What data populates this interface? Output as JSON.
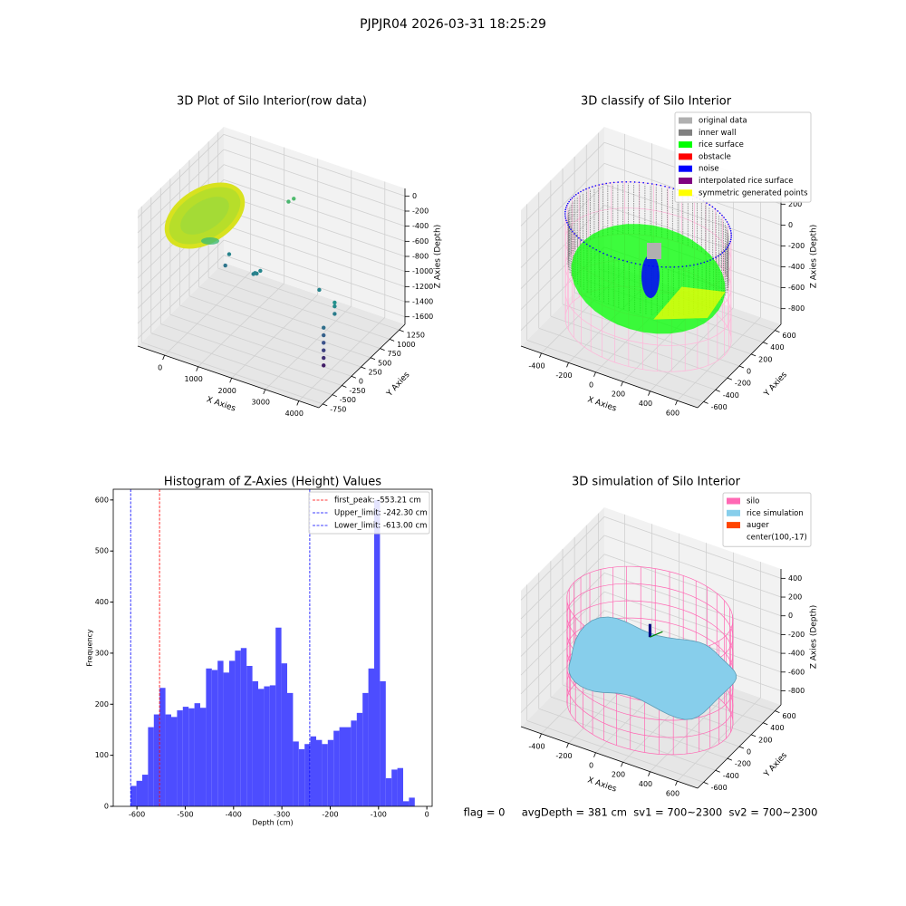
{
  "suptitle": "PJPJR04 2026-03-31 18:25:29",
  "chart_data": [
    {
      "type": "scatter3d",
      "title": "3D Plot of Silo Interior(row data)",
      "xlabel": "X Axies",
      "ylabel": "Y Axies",
      "zlabel": "Z Axies (Depth)",
      "xlim": [
        -800,
        4600
      ],
      "ylim": [
        -850,
        1400
      ],
      "zlim": [
        -1700,
        100
      ],
      "xticks": [
        0,
        1000,
        2000,
        3000,
        4000
      ],
      "yticks": [
        -750,
        -500,
        -250,
        0,
        250,
        500,
        750,
        1000,
        1250
      ],
      "zticks": [
        0,
        -200,
        -400,
        -600,
        -800,
        -1000,
        -1200,
        -1400,
        -1600
      ],
      "colormap": "viridis",
      "x": [
        4000,
        4000,
        4000,
        4000,
        4000,
        4000,
        4100,
        4100,
        4100,
        3300,
        1500,
        1550,
        1600,
        1450,
        500,
        500,
        1300,
        1400
      ],
      "y": [
        -200,
        -200,
        -200,
        -200,
        -200,
        -200,
        0,
        0,
        0,
        300,
        200,
        200,
        250,
        200,
        400,
        300,
        1250,
        1300
      ],
      "z": [
        -1550,
        -1450,
        -1350,
        -1250,
        -1150,
        -1050,
        -950,
        -850,
        -800,
        -900,
        -900,
        -900,
        -880,
        -920,
        -900,
        -1000,
        -500,
        -470
      ]
    },
    {
      "type": "surface3d",
      "title": "3D classify of Silo Interior",
      "xlabel": "X Axies",
      "ylabel": "Y Axies",
      "zlabel": "Z Axies (Depth)",
      "xlim": [
        -550,
        750
      ],
      "ylim": [
        -700,
        700
      ],
      "zlim": [
        -950,
        350
      ],
      "xticks": [
        -400,
        -200,
        0,
        200,
        400,
        600
      ],
      "yticks": [
        -600,
        -400,
        -200,
        0,
        200,
        400,
        600
      ],
      "zticks": [
        -800,
        -600,
        -400,
        -200,
        0,
        200
      ],
      "series": [
        {
          "name": "original data",
          "color": "#b0b0b0"
        },
        {
          "name": "inner wall",
          "color": "#808080"
        },
        {
          "name": "rice surface",
          "color": "#00ff00"
        },
        {
          "name": "obstacle",
          "color": "#ff0000"
        },
        {
          "name": "noise",
          "color": "#0000ff"
        },
        {
          "name": "interpolated rice surface",
          "color": "#800080"
        },
        {
          "name": "symmetric generated points",
          "color": "#ffff00"
        }
      ]
    },
    {
      "type": "histogram",
      "title": "Histogram of Z-Axies (Height) Values",
      "xlabel": "Depth (cm)",
      "ylabel": "Frequency",
      "color": "#4d4dff",
      "xlim": [
        -649,
        11
      ],
      "ylim": [
        0,
        621
      ],
      "xticks": [
        -600,
        -500,
        -400,
        -300,
        -200,
        -100,
        0
      ],
      "yticks": [
        0,
        100,
        200,
        300,
        400,
        500,
        600
      ],
      "bins": [
        -613,
        -601,
        -589,
        -577,
        -565,
        -553,
        -541,
        -529,
        -517,
        -505,
        -493,
        -481,
        -469,
        -457,
        -445,
        -433,
        -421,
        -409,
        -397,
        -385,
        -373,
        -361,
        -349,
        -337,
        -325,
        -313,
        -301,
        -289,
        -277,
        -265,
        -253,
        -241,
        -229,
        -217,
        -205,
        -193,
        -181,
        -169,
        -157,
        -145,
        -133,
        -121,
        -109,
        -97,
        -85,
        -73,
        -61,
        -49,
        -37,
        -25
      ],
      "counts": [
        40,
        50,
        62,
        155,
        180,
        232,
        180,
        175,
        188,
        195,
        192,
        202,
        193,
        270,
        267,
        285,
        262,
        285,
        305,
        310,
        275,
        245,
        230,
        235,
        237,
        350,
        280,
        222,
        127,
        112,
        122,
        137,
        130,
        122,
        130,
        148,
        155,
        155,
        168,
        183,
        222,
        270,
        600,
        245,
        55,
        72,
        75,
        10,
        17
      ],
      "vlines": [
        {
          "value": -553.21,
          "label": "first_peak: -553.21 cm",
          "color": "#ff0000"
        },
        {
          "value": -242.3,
          "label": "Upper_limit: -242.30 cm",
          "color": "#0000ff"
        },
        {
          "value": -613.0,
          "label": "Lower_limit: -613.00 cm",
          "color": "#0000ff"
        }
      ]
    },
    {
      "type": "surface3d",
      "title": "3D simulation of Silo Interior",
      "xlabel": "X Axies",
      "ylabel": "Y Axies",
      "zlabel": "Z Axies (Depth)",
      "xlim": [
        -550,
        750
      ],
      "ylim": [
        -700,
        700
      ],
      "zlim": [
        -950,
        500
      ],
      "xticks": [
        -400,
        -200,
        0,
        200,
        400,
        600
      ],
      "yticks": [
        -600,
        -400,
        -200,
        0,
        200,
        400,
        600
      ],
      "zticks": [
        -800,
        -600,
        -400,
        -200,
        0,
        200,
        400
      ],
      "series": [
        {
          "name": "silo",
          "color": "#ff69b4"
        },
        {
          "name": "rice simulation",
          "color": "#87ceeb"
        },
        {
          "name": "auger",
          "color": "#ff4500"
        },
        {
          "name": "center(100,-17)"
        }
      ]
    }
  ],
  "footer": "flag = 0     avgDepth = 381 cm  sv1 = 700~2300  sv2 = 700~2300"
}
